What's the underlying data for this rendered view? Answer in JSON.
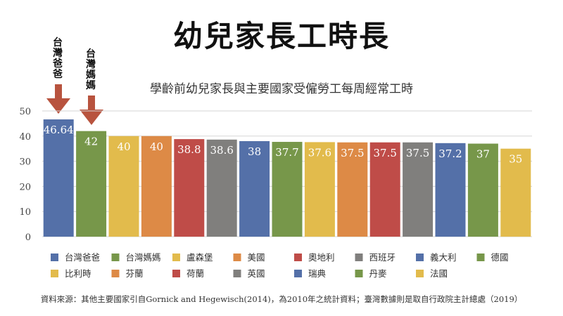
{
  "title": "幼兒家長工時長",
  "callouts": {
    "father": "台灣爸爸",
    "mother": "台灣媽媽"
  },
  "colors": {
    "blue": "#5470a8",
    "green": "#77974a",
    "yellow": "#e2bb4c",
    "orange": "#dd8a46",
    "red": "#bf4c48",
    "gray": "#807f7d",
    "arrow": "#b8533e"
  },
  "source": "資料來源：其他主要國家引自Gornick and Hegewisch(2014)，為2010年之統計資料；臺灣數據則是取自行政院主計總處（2019）",
  "chart_data": {
    "type": "bar",
    "title": "學齡前幼兒家長與主要國家受僱勞工每周經常工時",
    "xlabel": "",
    "ylabel": "",
    "ylim": [
      0,
      50
    ],
    "yticks": [
      0,
      10,
      20,
      30,
      40,
      50
    ],
    "grid": true,
    "legend_position": "bottom",
    "categories": [
      "台灣爸爸",
      "台灣媽媽",
      "盧森堡",
      "美國",
      "奧地利",
      "西班牙",
      "義大利",
      "德國",
      "比利時",
      "芬蘭",
      "荷蘭",
      "英國",
      "瑞典",
      "丹麥",
      "法國"
    ],
    "values": [
      46.64,
      42,
      40,
      40,
      38.8,
      38.6,
      38,
      37.7,
      37.6,
      37.5,
      37.5,
      37.5,
      37.2,
      37,
      35
    ],
    "value_labels": [
      "46.64",
      "42",
      "40",
      "40",
      "38.8",
      "38.6",
      "38",
      "37.7",
      "37.6",
      "37.5",
      "37.5",
      "37.5",
      "37.2",
      "37",
      "35"
    ],
    "bar_colors": [
      "#5470a8",
      "#77974a",
      "#e2bb4c",
      "#dd8a46",
      "#bf4c48",
      "#807f7d",
      "#5470a8",
      "#77974a",
      "#e2bb4c",
      "#dd8a46",
      "#bf4c48",
      "#807f7d",
      "#5470a8",
      "#77974a",
      "#e2bb4c"
    ]
  }
}
